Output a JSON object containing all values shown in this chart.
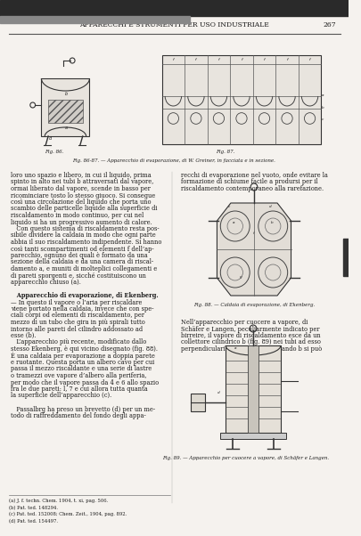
{
  "page_title": "APPARECCHI E STRUMENTI PER USO INDUSTRIALE",
  "page_number": "267",
  "bg_color": "#f5f2ee",
  "text_color": "#1a1a1a",
  "header_line_color": "#555555",
  "fig_caption_86_87": "Fig. 86-87. — Apparecchio di evaporazione, di W. Greiner, in facciata e in sezione.",
  "fig_caption_88": "Fig. 88. — Caldaia di evaporazione, di Ekenberg.",
  "fig_caption_89": "Fig. 89. — Apparecchio per cuocere a vapore, di Schäfer e Langen.",
  "body_text_col1_lines": [
    "loro uno spazio e libero, in cui il liquido, prima",
    "spinto in alto nei tubi b attraversati dal vapore,",
    "ormai liberato dal vapore, scende in basso per",
    "ricominciare tosto lo stesso giuoco. Si consegue",
    "così una circolazione del liquido che porta uno",
    "scambio delle particelle liquide alla superficie di",
    "riscaldamento in modo continuo, per cui nel",
    "liquido si ha un progressivo aumento di calore.",
    "   Con questo sistema di riscaldamento resta pos-",
    "sibile dividere la caldaia in modo che ogni parte",
    "abbia il suo riscaldamento indipendente. Si hanno",
    "così tanti scompartimenti od elementi f dell’ap-",
    "parecchio, ognuno dei quali è formato da una",
    "sezione della caldaia e da una camera di riscal-",
    "damento a, e muniti di molteplici collegamenti e",
    "di pareti sporgenti e, sicché costituiscono un",
    "apparecchio chiuso (a).",
    "",
    "   Apparecchio di evaporazione, di Ekenberg.",
    "— In questo il vapore o l’aria per riscaldare",
    "viene portato nella caldaia, invece che con spe-",
    "ciali corpi od elementi di riscaldamento, per",
    "mezzo di un tubo che gira in più spirali tutto",
    "intorno alle pareti del cilindro addossato ad",
    "esse (b).",
    "   L’apparecchio più recente, modificato dallo",
    "stesso Ekenberg, è qui vicino disegnato (fig. 88).",
    "È una caldaia per evaporazione a doppia parete",
    "e ruotante. Questa porta un albero cavo per cui",
    "passa il mezzo riscaldante e una serie di lastre",
    "o tramezzi ove vapore d’albero alla periferia,",
    "per modo che il vapore passa da 4 e 6 allo spazio",
    "fra le due pareti: l, 7 e cui allora tutta quanta",
    "la superficie dell’apparecchio (c).",
    "",
    "   Passalbrg ha preso un brevetto (d) per un me-",
    "todo di raffreddamento del fondo degli appa-"
  ],
  "body_text_col2_lines": [
    "recchi di evaporazione nel vuoto, onde evitare la",
    "formazione di schiume facile a prodursi per il",
    "riscaldamento contemporaneo alla rarefazione.",
    "",
    "",
    "",
    "",
    "",
    "",
    "",
    "",
    "",
    "",
    "",
    "",
    "",
    "",
    "",
    "",
    "",
    "",
    "",
    "Nell’apparecchio per cuocere a vapore, di",
    "Schäfer e Langen, peculiarmente indicato per",
    "birreire, il vapore di riscaldamento esce da un",
    "collettore cilindrico b (fig. 89) nei tubi ad esso",
    "perpendiculari a, in modo che alzando b si può"
  ],
  "footnotes": [
    "(a) J. f. techn. Chem. 1904, t. xi, pag. 506.",
    "(b) Pat. ted. 148294.",
    "(c) Pat. ted. 152008; Chem. Zeit., 1904, pag. 892.",
    "(d) Pat. ted. 154497."
  ]
}
